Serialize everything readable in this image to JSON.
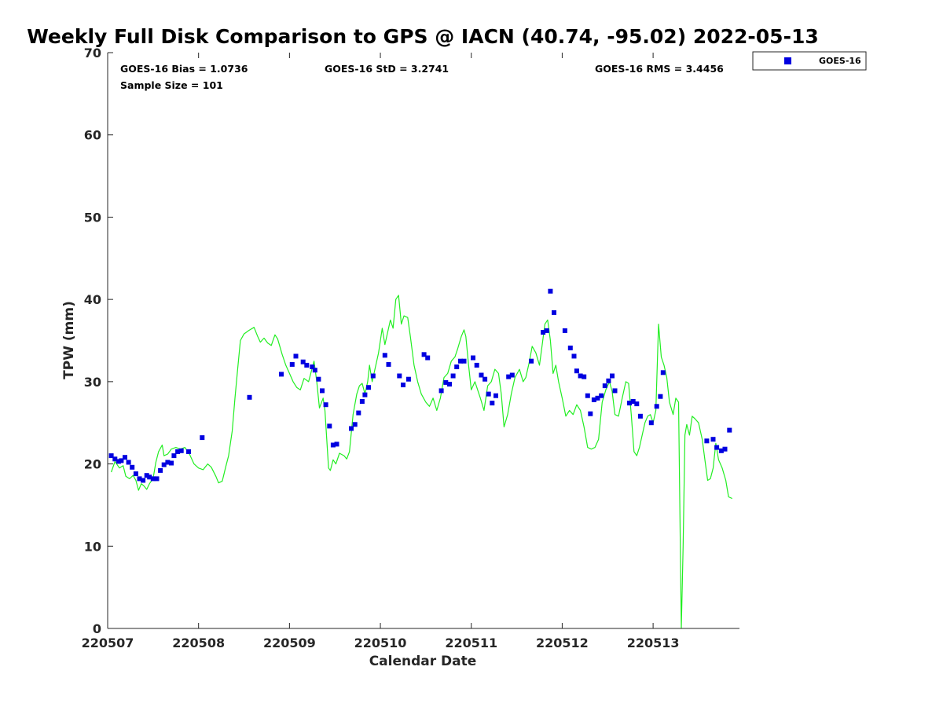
{
  "chart_data": {
    "type": "scatter",
    "title": "Weekly Full Disk Comparison to GPS @ IACN (40.74, -95.02) 2022-05-13",
    "xlabel": "Calendar Date",
    "ylabel": "TPW (mm)",
    "xlim": [
      0,
      6.95
    ],
    "ylim": [
      0,
      70
    ],
    "x_ticks": [
      0,
      1,
      2,
      3,
      4,
      5,
      6
    ],
    "x_tick_labels": [
      "220507",
      "220508",
      "220509",
      "220510",
      "220511",
      "220512",
      "220513"
    ],
    "y_ticks": [
      0,
      10,
      20,
      30,
      40,
      50,
      60,
      70
    ],
    "y_tick_labels": [
      "0",
      "10",
      "20",
      "30",
      "40",
      "50",
      "60",
      "70"
    ],
    "stats": {
      "bias": "GOES-16 Bias = 1.0736",
      "std": "GOES-16 StD = 3.2741",
      "rms": "GOES-16 RMS = 3.4456",
      "sample": "Sample Size = 101"
    },
    "legend": [
      {
        "name": "GOES-16",
        "color": "#0000e0",
        "marker": "square"
      }
    ],
    "gps_line": {
      "name": "GPS",
      "color": "#22ee22",
      "points": [
        [
          0.04,
          19.0
        ],
        [
          0.08,
          20.3
        ],
        [
          0.13,
          19.5
        ],
        [
          0.17,
          19.8
        ],
        [
          0.2,
          18.5
        ],
        [
          0.24,
          18.2
        ],
        [
          0.28,
          18.6
        ],
        [
          0.31,
          18.0
        ],
        [
          0.34,
          16.8
        ],
        [
          0.37,
          17.6
        ],
        [
          0.4,
          17.3
        ],
        [
          0.43,
          16.9
        ],
        [
          0.46,
          17.6
        ],
        [
          0.5,
          18.2
        ],
        [
          0.53,
          20.2
        ],
        [
          0.56,
          21.5
        ],
        [
          0.6,
          22.3
        ],
        [
          0.62,
          21.0
        ],
        [
          0.66,
          21.2
        ],
        [
          0.7,
          21.8
        ],
        [
          0.75,
          22.0
        ],
        [
          0.8,
          21.8
        ],
        [
          0.85,
          22.0
        ],
        [
          0.9,
          21.2
        ],
        [
          0.95,
          20.0
        ],
        [
          1.0,
          19.5
        ],
        [
          1.05,
          19.3
        ],
        [
          1.1,
          20.0
        ],
        [
          1.14,
          19.6
        ],
        [
          1.19,
          18.5
        ],
        [
          1.22,
          17.7
        ],
        [
          1.26,
          17.9
        ],
        [
          1.3,
          19.7
        ],
        [
          1.33,
          21.0
        ],
        [
          1.37,
          24.0
        ],
        [
          1.4,
          28.0
        ],
        [
          1.43,
          31.5
        ],
        [
          1.46,
          35.0
        ],
        [
          1.5,
          35.8
        ],
        [
          1.55,
          36.2
        ],
        [
          1.61,
          36.6
        ],
        [
          1.65,
          35.5
        ],
        [
          1.68,
          34.8
        ],
        [
          1.72,
          35.3
        ],
        [
          1.76,
          34.7
        ],
        [
          1.8,
          34.4
        ],
        [
          1.84,
          35.7
        ],
        [
          1.87,
          35.2
        ],
        [
          1.92,
          33.3
        ],
        [
          1.96,
          32.0
        ],
        [
          2.0,
          31.0
        ],
        [
          2.04,
          30.0
        ],
        [
          2.08,
          29.3
        ],
        [
          2.12,
          29.0
        ],
        [
          2.16,
          30.4
        ],
        [
          2.21,
          30.0
        ],
        [
          2.27,
          32.5
        ],
        [
          2.3,
          30.0
        ],
        [
          2.33,
          26.8
        ],
        [
          2.37,
          28.0
        ],
        [
          2.39,
          26.5
        ],
        [
          2.41,
          23.0
        ],
        [
          2.43,
          19.5
        ],
        [
          2.45,
          19.2
        ],
        [
          2.48,
          20.5
        ],
        [
          2.51,
          20.0
        ],
        [
          2.55,
          21.3
        ],
        [
          2.6,
          21.0
        ],
        [
          2.63,
          20.6
        ],
        [
          2.66,
          21.5
        ],
        [
          2.7,
          26.0
        ],
        [
          2.74,
          28.5
        ],
        [
          2.77,
          29.5
        ],
        [
          2.8,
          29.8
        ],
        [
          2.83,
          28.5
        ],
        [
          2.86,
          30.0
        ],
        [
          2.88,
          32.0
        ],
        [
          2.91,
          30.0
        ],
        [
          2.94,
          31.5
        ],
        [
          2.98,
          33.5
        ],
        [
          3.02,
          36.5
        ],
        [
          3.05,
          34.5
        ],
        [
          3.08,
          36.0
        ],
        [
          3.11,
          37.5
        ],
        [
          3.14,
          36.5
        ],
        [
          3.17,
          40.0
        ],
        [
          3.2,
          40.5
        ],
        [
          3.23,
          37.0
        ],
        [
          3.26,
          38.0
        ],
        [
          3.3,
          37.8
        ],
        [
          3.33,
          35.5
        ],
        [
          3.37,
          32.0
        ],
        [
          3.41,
          30.0
        ],
        [
          3.45,
          28.5
        ],
        [
          3.5,
          27.5
        ],
        [
          3.54,
          27.0
        ],
        [
          3.58,
          28.0
        ],
        [
          3.62,
          26.5
        ],
        [
          3.66,
          28.0
        ],
        [
          3.7,
          30.5
        ],
        [
          3.74,
          31.0
        ],
        [
          3.78,
          32.5
        ],
        [
          3.82,
          33.0
        ],
        [
          3.85,
          34.0
        ],
        [
          3.89,
          35.5
        ],
        [
          3.92,
          36.3
        ],
        [
          3.94,
          35.5
        ],
        [
          3.97,
          32.0
        ],
        [
          4.0,
          29.0
        ],
        [
          4.04,
          30.0
        ],
        [
          4.07,
          29.0
        ],
        [
          4.1,
          28.0
        ],
        [
          4.14,
          26.5
        ],
        [
          4.18,
          29.5
        ],
        [
          4.22,
          30.0
        ],
        [
          4.26,
          31.5
        ],
        [
          4.3,
          31.0
        ],
        [
          4.33,
          28.5
        ],
        [
          4.36,
          24.5
        ],
        [
          4.4,
          26.0
        ],
        [
          4.44,
          28.5
        ],
        [
          4.48,
          30.5
        ],
        [
          4.53,
          31.5
        ],
        [
          4.57,
          30.0
        ],
        [
          4.6,
          30.5
        ],
        [
          4.64,
          32.5
        ],
        [
          4.67,
          34.3
        ],
        [
          4.71,
          33.5
        ],
        [
          4.75,
          32.0
        ],
        [
          4.78,
          34.5
        ],
        [
          4.81,
          37.0
        ],
        [
          4.84,
          37.5
        ],
        [
          4.87,
          35.0
        ],
        [
          4.9,
          31.0
        ],
        [
          4.93,
          32.0
        ],
        [
          4.96,
          30.0
        ],
        [
          5.0,
          28.0
        ],
        [
          5.04,
          25.8
        ],
        [
          5.08,
          26.5
        ],
        [
          5.12,
          26.0
        ],
        [
          5.16,
          27.2
        ],
        [
          5.2,
          26.5
        ],
        [
          5.24,
          24.5
        ],
        [
          5.28,
          22.0
        ],
        [
          5.32,
          21.8
        ],
        [
          5.36,
          22.0
        ],
        [
          5.4,
          23.0
        ],
        [
          5.44,
          27.5
        ],
        [
          5.48,
          29.0
        ],
        [
          5.52,
          30.0
        ],
        [
          5.55,
          28.8
        ],
        [
          5.58,
          26.0
        ],
        [
          5.62,
          25.8
        ],
        [
          5.66,
          28.0
        ],
        [
          5.7,
          30.0
        ],
        [
          5.73,
          29.8
        ],
        [
          5.76,
          26.0
        ],
        [
          5.79,
          21.5
        ],
        [
          5.82,
          21.0
        ],
        [
          5.85,
          22.0
        ],
        [
          5.88,
          23.5
        ],
        [
          5.91,
          25.0
        ],
        [
          5.94,
          25.8
        ],
        [
          5.97,
          26.0
        ],
        [
          6.0,
          25.0
        ],
        [
          6.03,
          26.5
        ],
        [
          6.06,
          37.0
        ],
        [
          6.09,
          33.0
        ],
        [
          6.12,
          32.0
        ],
        [
          6.15,
          30.5
        ],
        [
          6.18,
          27.5
        ],
        [
          6.22,
          26.0
        ],
        [
          6.25,
          28.0
        ],
        [
          6.28,
          27.5
        ],
        [
          6.31,
          0.0
        ],
        [
          6.33,
          10.0
        ],
        [
          6.35,
          23.5
        ],
        [
          6.37,
          24.8
        ],
        [
          6.4,
          23.5
        ],
        [
          6.43,
          25.8
        ],
        [
          6.46,
          25.5
        ],
        [
          6.5,
          25.0
        ],
        [
          6.54,
          23.0
        ],
        [
          6.57,
          20.5
        ],
        [
          6.6,
          18.0
        ],
        [
          6.63,
          18.2
        ],
        [
          6.66,
          19.5
        ],
        [
          6.69,
          22.5
        ],
        [
          6.72,
          20.5
        ],
        [
          6.76,
          19.5
        ],
        [
          6.8,
          18.0
        ],
        [
          6.83,
          16.0
        ],
        [
          6.87,
          15.8
        ]
      ]
    },
    "series": [
      {
        "name": "GOES-16",
        "color": "#0000e0",
        "points": [
          [
            0.04,
            21.0
          ],
          [
            0.08,
            20.6
          ],
          [
            0.12,
            20.3
          ],
          [
            0.15,
            20.4
          ],
          [
            0.19,
            20.8
          ],
          [
            0.23,
            20.2
          ],
          [
            0.27,
            19.6
          ],
          [
            0.31,
            18.8
          ],
          [
            0.35,
            18.2
          ],
          [
            0.39,
            18.0
          ],
          [
            0.43,
            18.6
          ],
          [
            0.46,
            18.4
          ],
          [
            0.5,
            18.2
          ],
          [
            0.54,
            18.2
          ],
          [
            0.58,
            19.2
          ],
          [
            0.62,
            19.9
          ],
          [
            0.66,
            20.2
          ],
          [
            0.7,
            20.1
          ],
          [
            0.73,
            21.0
          ],
          [
            0.77,
            21.5
          ],
          [
            0.81,
            21.6
          ],
          [
            0.89,
            21.5
          ],
          [
            1.04,
            23.2
          ],
          [
            1.56,
            28.1
          ],
          [
            1.91,
            30.9
          ],
          [
            2.03,
            32.1
          ],
          [
            2.07,
            33.1
          ],
          [
            2.15,
            32.4
          ],
          [
            2.19,
            32.0
          ],
          [
            2.25,
            31.8
          ],
          [
            2.28,
            31.4
          ],
          [
            2.32,
            30.3
          ],
          [
            2.36,
            28.9
          ],
          [
            2.4,
            27.2
          ],
          [
            2.44,
            24.6
          ],
          [
            2.48,
            22.3
          ],
          [
            2.52,
            22.4
          ],
          [
            2.68,
            24.3
          ],
          [
            2.72,
            24.8
          ],
          [
            2.76,
            26.2
          ],
          [
            2.8,
            27.6
          ],
          [
            2.83,
            28.4
          ],
          [
            2.87,
            29.3
          ],
          [
            2.92,
            30.7
          ],
          [
            3.05,
            33.2
          ],
          [
            3.09,
            32.1
          ],
          [
            3.21,
            30.7
          ],
          [
            3.25,
            29.6
          ],
          [
            3.31,
            30.3
          ],
          [
            3.48,
            33.3
          ],
          [
            3.52,
            32.9
          ],
          [
            3.67,
            28.9
          ],
          [
            3.72,
            29.9
          ],
          [
            3.76,
            29.7
          ],
          [
            3.8,
            30.7
          ],
          [
            3.84,
            31.8
          ],
          [
            3.88,
            32.5
          ],
          [
            3.92,
            32.5
          ],
          [
            4.02,
            32.9
          ],
          [
            4.06,
            32.0
          ],
          [
            4.11,
            30.8
          ],
          [
            4.15,
            30.3
          ],
          [
            4.19,
            28.5
          ],
          [
            4.23,
            27.4
          ],
          [
            4.27,
            28.3
          ],
          [
            4.41,
            30.6
          ],
          [
            4.45,
            30.8
          ],
          [
            4.66,
            32.5
          ],
          [
            4.79,
            36.0
          ],
          [
            4.83,
            36.2
          ],
          [
            4.87,
            41.0
          ],
          [
            4.91,
            38.4
          ],
          [
            5.03,
            36.2
          ],
          [
            5.09,
            34.1
          ],
          [
            5.13,
            33.1
          ],
          [
            5.16,
            31.3
          ],
          [
            5.2,
            30.7
          ],
          [
            5.24,
            30.6
          ],
          [
            5.28,
            28.3
          ],
          [
            5.31,
            26.1
          ],
          [
            5.35,
            27.8
          ],
          [
            5.39,
            28.0
          ],
          [
            5.43,
            28.3
          ],
          [
            5.47,
            29.5
          ],
          [
            5.51,
            30.1
          ],
          [
            5.55,
            30.7
          ],
          [
            5.58,
            28.9
          ],
          [
            5.74,
            27.4
          ],
          [
            5.78,
            27.6
          ],
          [
            5.82,
            27.3
          ],
          [
            5.86,
            25.8
          ],
          [
            5.98,
            25.0
          ],
          [
            6.04,
            27.0
          ],
          [
            6.08,
            28.2
          ],
          [
            6.11,
            31.1
          ],
          [
            6.59,
            22.8
          ],
          [
            6.66,
            23.0
          ],
          [
            6.7,
            22.0
          ],
          [
            6.75,
            21.6
          ],
          [
            6.79,
            21.8
          ],
          [
            6.84,
            24.1
          ]
        ]
      }
    ]
  }
}
